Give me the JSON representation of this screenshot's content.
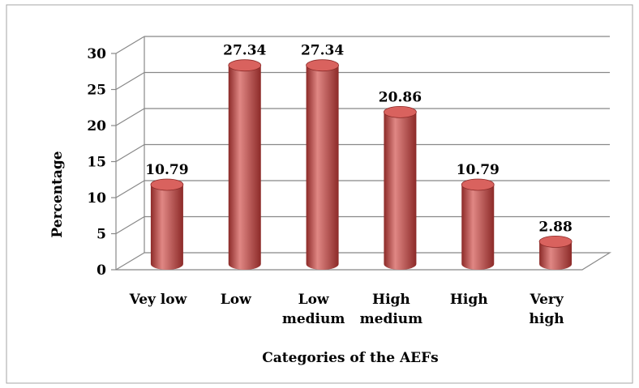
{
  "chart_data": {
    "type": "bar",
    "categories": [
      [
        "Vey low"
      ],
      [
        "Low"
      ],
      [
        "Low",
        "medium"
      ],
      [
        "High",
        "medium"
      ],
      [
        "High"
      ],
      [
        "Very",
        "high"
      ]
    ],
    "values": [
      10.79,
      27.34,
      27.34,
      20.86,
      10.79,
      2.88
    ],
    "value_labels": [
      "10.79",
      "27.34",
      "27.34",
      "20.86",
      "10.79",
      "2.88"
    ],
    "xlabel": "Categories of the AEFs",
    "ylabel": "Percentage",
    "ylim": [
      0,
      30
    ],
    "yticks": [
      0,
      5,
      10,
      15,
      20,
      25,
      30
    ],
    "grid": true,
    "bar_style": "3d-cylinder",
    "colors": {
      "bar": "#c0504d",
      "bar_dark": "#8c2a28",
      "bar_light": "#e08784",
      "bar_top": "#d9625e",
      "grid": "#888888",
      "frame": "#a6a6a6"
    }
  }
}
